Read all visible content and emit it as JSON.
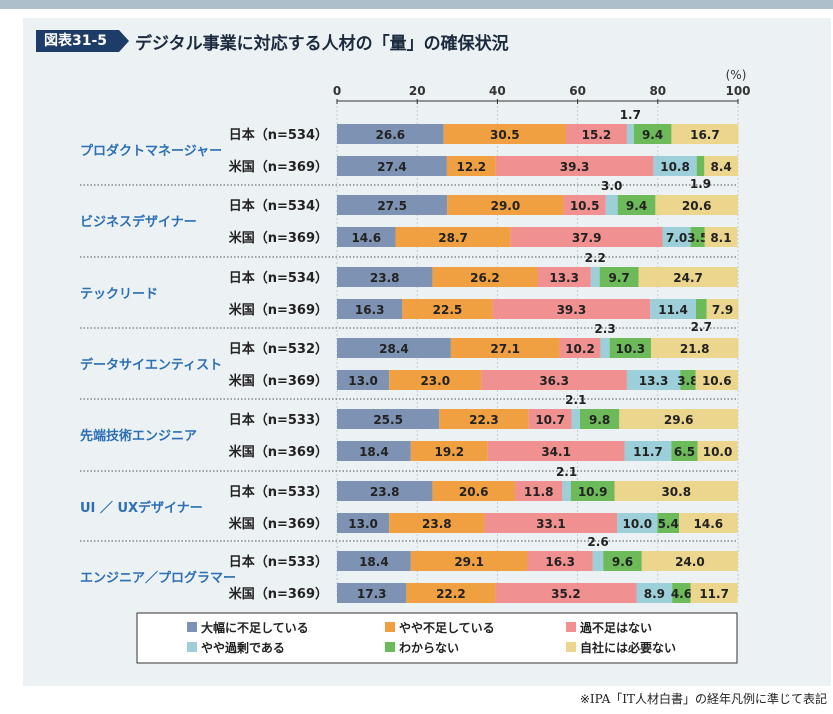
{
  "figure": {
    "badge": "図表31-5",
    "title": "デジタル事業に対応する人材の「量」の確保状況"
  },
  "footnote": "※IPA「IT人材白書」の経年凡例に準じて表記",
  "colors": {
    "大幅に不足している": "#7e93b3",
    "やや不足している": "#f0a040",
    "過不足はない": "#f09090",
    "やや過剰である": "#9ccfd9",
    "わからない": "#6dba5a",
    "自社には必要ない": "#ecd58c",
    "title_badge": "#1d3c68",
    "panel": "#ecf1f4",
    "category_label": "#2b6fb5"
  },
  "chart_data": {
    "type": "bar",
    "orientation": "horizontal",
    "stacked": true,
    "x_unit": "(%)",
    "xlim": [
      0,
      100
    ],
    "x_ticks": [
      "0",
      "20",
      "40",
      "60",
      "80",
      "100"
    ],
    "legend_position": "bottom",
    "series_names": [
      "大幅に不足している",
      "やや不足している",
      "過不足はない",
      "やや過剰である",
      "わからない",
      "自社には必要ない"
    ],
    "groups": [
      {
        "category": "プロダクトマネージャー",
        "rows": [
          {
            "label": "日本（n=534）",
            "values": [
              26.6,
              30.5,
              15.2,
              1.7,
              9.4,
              16.7
            ]
          },
          {
            "label": "米国（n=369）",
            "values": [
              27.4,
              12.2,
              39.3,
              10.8,
              1.9,
              8.4
            ]
          }
        ]
      },
      {
        "category": "ビジネスデザイナー",
        "rows": [
          {
            "label": "日本（n=534）",
            "values": [
              27.5,
              29.0,
              10.5,
              3.0,
              9.4,
              20.6
            ]
          },
          {
            "label": "米国（n=369）",
            "values": [
              14.6,
              28.7,
              37.9,
              7.0,
              3.5,
              8.1
            ]
          }
        ]
      },
      {
        "category": "テックリード",
        "rows": [
          {
            "label": "日本（n=534）",
            "values": [
              23.8,
              26.2,
              13.3,
              2.2,
              9.7,
              24.7
            ]
          },
          {
            "label": "米国（n=369）",
            "values": [
              16.3,
              22.5,
              39.3,
              11.4,
              2.7,
              7.9
            ]
          }
        ]
      },
      {
        "category": "データサイエンティスト",
        "rows": [
          {
            "label": "日本（n=532）",
            "values": [
              28.4,
              27.1,
              10.2,
              2.3,
              10.3,
              21.8
            ]
          },
          {
            "label": "米国（n=369）",
            "values": [
              13.0,
              23.0,
              36.3,
              13.3,
              3.8,
              10.6
            ]
          }
        ]
      },
      {
        "category": "先端技術エンジニア",
        "rows": [
          {
            "label": "日本（n=533）",
            "values": [
              25.5,
              22.3,
              10.7,
              2.1,
              9.8,
              29.6
            ]
          },
          {
            "label": "米国（n=369）",
            "values": [
              18.4,
              19.2,
              34.1,
              11.7,
              6.5,
              10.0
            ]
          }
        ]
      },
      {
        "category": "UI ／ UXデザイナー",
        "rows": [
          {
            "label": "日本（n=533）",
            "values": [
              23.8,
              20.6,
              11.8,
              2.1,
              10.9,
              30.8
            ]
          },
          {
            "label": "米国（n=369）",
            "values": [
              13.0,
              23.8,
              33.1,
              10.0,
              5.4,
              14.6
            ]
          }
        ]
      },
      {
        "category": "エンジニア／プログラマー",
        "rows": [
          {
            "label": "日本（n=533）",
            "values": [
              18.4,
              29.1,
              16.3,
              2.6,
              9.6,
              24.0
            ]
          },
          {
            "label": "米国（n=369）",
            "values": [
              17.3,
              22.2,
              35.2,
              8.9,
              4.6,
              11.7
            ]
          }
        ]
      }
    ]
  }
}
